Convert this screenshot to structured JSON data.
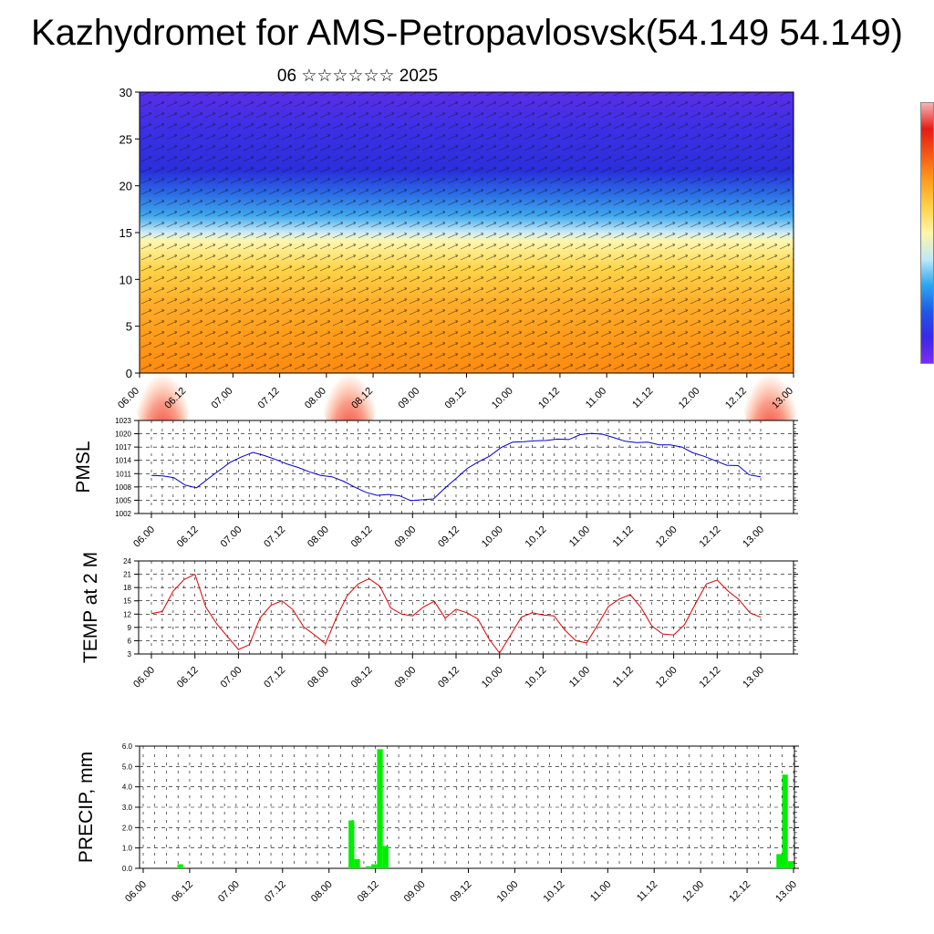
{
  "title": "Kazhydromet for AMS-Petropavlosvsk(54.149 54.149)",
  "subtitle": "06 ☆☆☆☆☆☆ 2025",
  "time_labels": [
    "06.00",
    "06.12",
    "07.00",
    "07.12",
    "08.00",
    "08.12",
    "09.00",
    "09.12",
    "10.00",
    "10.12",
    "11.00",
    "11.12",
    "12.00",
    "12.12",
    "13.00"
  ],
  "colors": {
    "pmsl_line": "#0000cc",
    "temp_line": "#dd0000",
    "precip_bar": "#00ee00"
  },
  "chart_data": [
    {
      "type": "heatmap",
      "title": "06 ☆☆☆☆☆☆ 2025",
      "ylim": [
        0,
        30
      ],
      "y_ticks": [
        0,
        5,
        10,
        15,
        20,
        25,
        30
      ],
      "x_ticks": [
        "06.00",
        "06.12",
        "07.00",
        "07.12",
        "08.00",
        "08.12",
        "09.00",
        "09.12",
        "10.00",
        "10.12",
        "11.00",
        "11.12",
        "12.00",
        "12.12",
        "13.00"
      ],
      "warm_maxima_x": [
        "06.06",
        "08.12",
        "12.18"
      ],
      "overlay": "wind vectors",
      "colorbar": [
        "#7b2cf0",
        "#3a27e8",
        "#1f5ae6",
        "#2aa7ef",
        "#bfe9f9",
        "#fff5a8",
        "#ffd24a",
        "#ff9f1e",
        "#f55a14",
        "#e61b14",
        "#f5b5b5"
      ]
    },
    {
      "type": "line",
      "ylabel": "PMSL",
      "ylim": [
        1002,
        1023
      ],
      "y_ticks": [
        1002,
        1005,
        1008,
        1011,
        1014,
        1017,
        1020,
        1023
      ],
      "x_ticks": [
        "06.00",
        "06.12",
        "07.00",
        "07.12",
        "08.00",
        "08.12",
        "09.00",
        "09.12",
        "10.00",
        "10.12",
        "11.00",
        "11.12",
        "12.00",
        "12.12",
        "13.00"
      ],
      "series": [
        {
          "values": [
            1010.6,
            1010.5,
            1010.1,
            1008.4,
            1007.8,
            1009.8,
            1011.7,
            1013.6,
            1014.8,
            1015.8,
            1015.1,
            1014.2,
            1013.2,
            1012.4,
            1011.4,
            1010.6,
            1010.3,
            1009.3,
            1008.0,
            1006.8,
            1006.1,
            1006.3,
            1006.0,
            1004.9,
            1005.1,
            1005.3,
            1007.7,
            1009.9,
            1012.2,
            1013.7,
            1015.0,
            1016.9,
            1018.1,
            1018.2,
            1018.4,
            1018.5,
            1018.8,
            1018.7,
            1019.8,
            1020.1,
            1019.9,
            1019.1,
            1018.3,
            1018.0,
            1018.1,
            1017.5,
            1017.5,
            1017.0,
            1015.7,
            1014.9,
            1013.9,
            1012.9,
            1012.8,
            1010.7,
            1010.3
          ]
        }
      ]
    },
    {
      "type": "line",
      "ylabel": "TEMP at 2 M",
      "ylim": [
        3,
        24
      ],
      "y_ticks": [
        3,
        6,
        9,
        12,
        15,
        18,
        21,
        24
      ],
      "x_ticks": [
        "06.00",
        "06.12",
        "07.00",
        "07.12",
        "08.00",
        "08.12",
        "09.00",
        "09.12",
        "10.00",
        "10.12",
        "11.00",
        "11.12",
        "12.00",
        "12.12",
        "13.00"
      ],
      "series": [
        {
          "values": [
            12.1,
            12.6,
            17.2,
            19.8,
            21.0,
            13.6,
            9.8,
            6.9,
            4.0,
            5.1,
            11.2,
            14.0,
            15.0,
            13.0,
            9.1,
            7.3,
            5.3,
            11.2,
            16.2,
            18.8,
            20.0,
            18.3,
            13.4,
            12.0,
            11.6,
            13.6,
            14.9,
            11.1,
            13.1,
            12.3,
            10.9,
            6.5,
            3.2,
            7.2,
            11.3,
            12.3,
            11.8,
            11.6,
            8.4,
            6.0,
            5.5,
            9.5,
            13.7,
            15.4,
            16.4,
            13.5,
            9.3,
            7.5,
            7.3,
            9.6,
            14.3,
            18.8,
            19.7,
            17.2,
            15.3,
            12.3,
            11.3
          ]
        }
      ]
    },
    {
      "type": "bar",
      "ylabel": "PRECIP, mm",
      "ylim": [
        0,
        6
      ],
      "y_ticks": [
        "0.0",
        "1.0",
        "2.0",
        "3.0",
        "4.0",
        "5.0",
        "6.0"
      ],
      "x_ticks": [
        "06.00",
        "06.12",
        "07.00",
        "07.12",
        "08.00",
        "08.12",
        "09.00",
        "09.12",
        "10.00",
        "10.12",
        "11.00",
        "11.12",
        "12.00",
        "12.12",
        "13.00"
      ],
      "values": [
        0,
        0,
        0,
        0,
        0,
        0,
        0.2,
        0,
        0,
        0,
        0,
        0,
        0,
        0,
        0,
        0,
        0,
        0,
        0,
        0,
        0,
        0,
        0,
        0,
        0,
        0,
        0,
        0,
        0,
        0,
        0,
        0,
        0,
        0,
        0,
        0,
        2.35,
        0.45,
        0,
        0.1,
        0.2,
        5.85,
        1.1,
        0,
        0,
        0,
        0,
        0,
        0,
        0,
        0,
        0,
        0,
        0,
        0,
        0,
        0,
        0,
        0,
        0,
        0,
        0,
        0,
        0,
        0,
        0,
        0,
        0,
        0,
        0,
        0,
        0,
        0,
        0,
        0,
        0,
        0,
        0,
        0,
        0,
        0,
        0,
        0,
        0,
        0,
        0,
        0,
        0,
        0,
        0,
        0,
        0,
        0,
        0,
        0,
        0,
        0,
        0,
        0,
        0,
        0,
        0,
        0,
        0,
        0,
        0,
        0,
        0,
        0,
        0,
        0.05,
        0.7,
        4.6,
        0.35
      ]
    }
  ]
}
